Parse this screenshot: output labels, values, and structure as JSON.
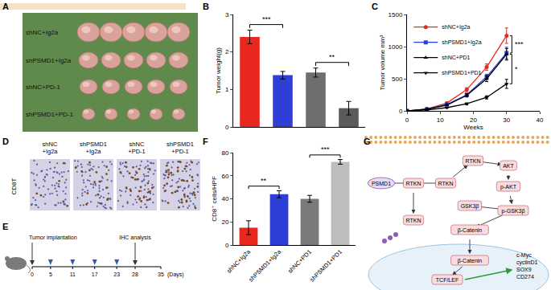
{
  "panel_labels": [
    "A",
    "B",
    "C",
    "D",
    "E",
    "F",
    "G"
  ],
  "photo_A": {
    "rows": [
      "shNC+Ig2a",
      "shPSMD1+Ig2a",
      "shNC+PD-1",
      "shPSMD1+PD-1"
    ]
  },
  "chart_data": [
    {
      "type": "bar",
      "y_label": "Tumor weight(g)",
      "categories": [
        null,
        null,
        null,
        null
      ],
      "values": [
        2.4,
        1.38,
        1.45,
        0.5
      ],
      "errors": [
        0.18,
        0.1,
        0.12,
        0.18
      ],
      "colors": [
        "#e8281e",
        "#2d3fd6",
        "#6e6e6e",
        "#5a5a5a"
      ],
      "ylim": [
        0,
        3
      ],
      "yticks": [
        0,
        1,
        2,
        3
      ],
      "grid": false,
      "tick_labels": "y",
      "comparisons": [
        {
          "between": [
            0,
            1
          ],
          "label": "***"
        },
        {
          "between": [
            2,
            3
          ],
          "label": "**"
        }
      ]
    },
    {
      "type": "line",
      "x_label": "Weeks",
      "y_label": "Tumor volume mm³",
      "x": [
        0,
        6,
        12,
        18,
        24,
        30
      ],
      "series": [
        {
          "name": "shNC+Ig2a",
          "color": "#e8281e",
          "marker": "circle",
          "values": [
            0,
            30,
            120,
            330,
            680,
            1170
          ],
          "errors": [
            0,
            8,
            15,
            30,
            50,
            120
          ]
        },
        {
          "name": "shPSMD1+Ig2a",
          "color": "#2d3fd6",
          "marker": "square",
          "values": [
            0,
            25,
            100,
            250,
            530,
            900
          ],
          "errors": [
            0,
            6,
            12,
            25,
            40,
            90
          ]
        },
        {
          "name": "shNC+PD1",
          "color": "#000000",
          "marker": "triangle-up",
          "values": [
            0,
            25,
            90,
            240,
            500,
            880
          ],
          "errors": [
            0,
            6,
            12,
            25,
            45,
            90
          ]
        },
        {
          "name": "shPSMD1+PD1",
          "color": "#000000",
          "marker": "triangle-down",
          "values": [
            0,
            15,
            50,
            110,
            210,
            420
          ],
          "errors": [
            0,
            4,
            8,
            15,
            25,
            70
          ]
        }
      ],
      "xlim": [
        0,
        40
      ],
      "xticks": [
        0,
        10,
        20,
        30,
        40
      ],
      "ylim": [
        0,
        1500
      ],
      "yticks": [
        0,
        500,
        1000,
        1500
      ],
      "grid": false,
      "legend": "top-left",
      "comparisons": [
        {
          "between": [
            0,
            1
          ],
          "label": "***"
        },
        {
          "between": [
            2,
            3
          ],
          "label": "*"
        }
      ]
    },
    {
      "type": "bar",
      "y_label": "CD8⁺ cells/HPF",
      "categories": [
        "shNC+Ig2a",
        "shPSMD1+Ig2a",
        "shNC+PD1",
        "shPSMD1+PD1"
      ],
      "values": [
        15,
        44,
        40,
        72
      ],
      "errors": [
        6,
        3,
        3,
        2
      ],
      "colors": [
        "#e8281e",
        "#2d3fd6",
        "#7a7a7a",
        "#bdbdbd"
      ],
      "ylim": [
        0,
        80
      ],
      "yticks": [
        0,
        20,
        40,
        60,
        80
      ],
      "grid": false,
      "comparisons": [
        {
          "between": [
            0,
            1
          ],
          "label": "**"
        },
        {
          "between": [
            2,
            3
          ],
          "label": "***"
        }
      ]
    }
  ],
  "ihc_D": {
    "stain": "CD8T",
    "columns": [
      [
        "shNC",
        "+Ig2a"
      ],
      [
        "shPSMD1",
        "+Ig2a"
      ],
      [
        "shNC",
        "+PD-1"
      ],
      [
        "shPSMD1",
        "+PD-1"
      ]
    ]
  },
  "timeline_E": {
    "events": [
      "Tumor implantation",
      "IHC analysis"
    ],
    "event_days": [
      0,
      28
    ],
    "days": [
      0,
      5,
      11,
      17,
      23,
      28,
      35
    ],
    "treatment_days": [
      5,
      11,
      17,
      23
    ],
    "unit": "(Days)"
  },
  "pathway_G": {
    "nodes": [
      "PSMD1",
      "RTKN",
      "RTKN",
      "RTKN",
      "RTKN",
      "AKT",
      "p-AKT",
      "GSK3β",
      "p-GSK3β",
      "β-Catenin",
      "β-Catenin",
      "TCF/LEF"
    ],
    "targets": [
      "c-Myc",
      "cyclinD1",
      "SOX9",
      "CD274"
    ]
  }
}
